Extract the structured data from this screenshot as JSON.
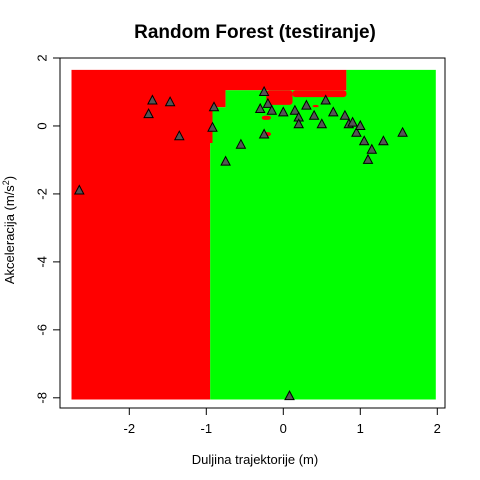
{
  "chart_data": {
    "type": "scatter",
    "title": "Random Forest (testiranje)",
    "xlabel": "Duljina trajektorije (m)",
    "ylabel_main": "Akceleracija (m/s",
    "ylabel_sup": "2",
    "ylabel_end": ")",
    "xlim": [
      -2.9,
      2.1
    ],
    "ylim": [
      -8.3,
      2.0
    ],
    "xticks": [
      -2,
      -1,
      0,
      1,
      2
    ],
    "yticks": [
      -8,
      -6,
      -4,
      -2,
      0,
      2
    ],
    "grid": false,
    "background_region": {
      "x_range": [
        -2.75,
        1.98
      ],
      "y_range": [
        -8.05,
        1.65
      ]
    },
    "decision_regions": [
      {
        "class": "red",
        "color": "#ff0000",
        "polygon": [
          [
            -2.75,
            1.65
          ],
          [
            0.82,
            1.65
          ],
          [
            0.82,
            1.05
          ],
          [
            -0.75,
            1.05
          ],
          [
            -0.75,
            0.55
          ],
          [
            -0.92,
            0.55
          ],
          [
            -0.92,
            -0.5
          ],
          [
            -0.95,
            -0.5
          ],
          [
            -0.95,
            -8.05
          ],
          [
            -2.75,
            -8.05
          ]
        ]
      },
      {
        "class": "green",
        "color": "#00ff00",
        "polygon": [
          [
            0.82,
            1.65
          ],
          [
            1.98,
            1.65
          ],
          [
            1.98,
            -8.05
          ],
          [
            -0.95,
            -8.05
          ],
          [
            -0.95,
            -0.5
          ],
          [
            -0.92,
            -0.5
          ],
          [
            -0.92,
            0.55
          ],
          [
            -0.75,
            0.55
          ],
          [
            -0.75,
            1.05
          ],
          [
            0.82,
            1.05
          ]
        ]
      }
    ],
    "red_patches": [
      {
        "x": [
          -0.22,
          0.12
        ],
        "y": [
          0.62,
          1.05
        ]
      },
      {
        "x": [
          0.12,
          0.82
        ],
        "y": [
          0.85,
          1.05
        ]
      },
      {
        "x": [
          -0.28,
          -0.16
        ],
        "y": [
          0.18,
          0.3
        ]
      },
      {
        "x": [
          -0.28,
          -0.16
        ],
        "y": [
          -0.3,
          -0.18
        ]
      },
      {
        "x": [
          0.38,
          0.46
        ],
        "y": [
          0.55,
          0.62
        ]
      }
    ],
    "series": [
      {
        "marker": "triangle",
        "fill": "#555555",
        "points": [
          [
            -2.65,
            -1.9
          ],
          [
            -1.7,
            0.75
          ],
          [
            -1.47,
            0.7
          ],
          [
            -1.75,
            0.35
          ],
          [
            -1.35,
            -0.3
          ],
          [
            -0.9,
            0.55
          ],
          [
            -0.92,
            -0.05
          ],
          [
            -0.75,
            -1.05
          ],
          [
            -0.55,
            -0.55
          ],
          [
            -0.3,
            0.5
          ],
          [
            -0.25,
            1.0
          ],
          [
            -0.2,
            0.65
          ],
          [
            -0.15,
            0.45
          ],
          [
            -0.25,
            -0.25
          ],
          [
            0.0,
            0.4
          ],
          [
            0.15,
            0.45
          ],
          [
            0.2,
            0.25
          ],
          [
            0.2,
            0.05
          ],
          [
            0.3,
            0.6
          ],
          [
            0.4,
            0.3
          ],
          [
            0.5,
            0.05
          ],
          [
            0.55,
            0.75
          ],
          [
            0.65,
            0.4
          ],
          [
            0.8,
            0.3
          ],
          [
            0.85,
            0.05
          ],
          [
            0.9,
            0.1
          ],
          [
            0.95,
            -0.2
          ],
          [
            1.0,
            0.0
          ],
          [
            1.05,
            -0.45
          ],
          [
            1.1,
            -1.0
          ],
          [
            1.15,
            -0.7
          ],
          [
            1.3,
            -0.45
          ],
          [
            1.55,
            -0.2
          ],
          [
            0.08,
            -7.95
          ]
        ]
      }
    ]
  }
}
